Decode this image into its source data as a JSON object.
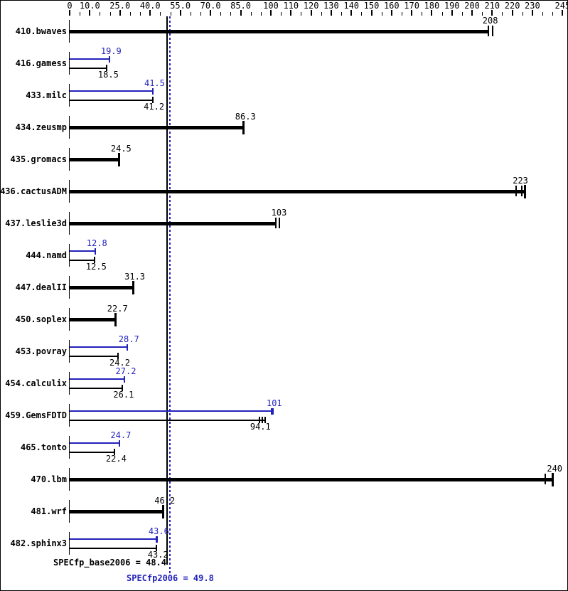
{
  "colors": {
    "base": "#000000",
    "peak": "#2222bb",
    "background": "#ffffff",
    "border": "#000000"
  },
  "chart_data": {
    "type": "bar",
    "orientation": "horizontal",
    "title": "",
    "xlabel": "",
    "ylabel": "",
    "axis": {
      "min": 0,
      "max": 245,
      "tick_step": 5,
      "grid": false,
      "major_ticks": [
        {
          "value": 0,
          "label": "0"
        },
        {
          "value": 10,
          "label": "10.0"
        },
        {
          "value": 25,
          "label": "25.0"
        },
        {
          "value": 40,
          "label": "40.0"
        },
        {
          "value": 55,
          "label": "55.0"
        },
        {
          "value": 70,
          "label": "70.0"
        },
        {
          "value": 85,
          "label": "85.0"
        },
        {
          "value": 100,
          "label": "100"
        },
        {
          "value": 110,
          "label": "110"
        },
        {
          "value": 120,
          "label": "120"
        },
        {
          "value": 130,
          "label": "130"
        },
        {
          "value": 140,
          "label": "140"
        },
        {
          "value": 150,
          "label": "150"
        },
        {
          "value": 160,
          "label": "160"
        },
        {
          "value": 170,
          "label": "170"
        },
        {
          "value": 180,
          "label": "180"
        },
        {
          "value": 190,
          "label": "190"
        },
        {
          "value": 200,
          "label": "200"
        },
        {
          "value": 210,
          "label": "210"
        },
        {
          "value": 220,
          "label": "220"
        },
        {
          "value": 230,
          "label": "230"
        },
        {
          "value": 245,
          "label": "245"
        }
      ]
    },
    "mean_lines": [
      {
        "name": "base-mean-line",
        "value": 48.4,
        "style": "solid",
        "color": "#000000"
      },
      {
        "name": "peak-mean-line",
        "value": 49.8,
        "style": "dotted",
        "color": "#2222bb"
      }
    ],
    "benchmarks": [
      {
        "name": "410.bwaves",
        "peak": null,
        "base": {
          "value": 208,
          "label": "208",
          "bar_to": 208.5,
          "cap": false,
          "run_ticks": [
            208,
            210.2
          ]
        }
      },
      {
        "name": "416.gamess",
        "peak": {
          "value": 19.9,
          "label": "19.9"
        },
        "base": {
          "value": 18.5,
          "label": "18.5"
        }
      },
      {
        "name": "433.milc",
        "peak": {
          "value": 41.5,
          "label": "41.5"
        },
        "base": {
          "value": 41.2,
          "label": "41.2"
        }
      },
      {
        "name": "434.zeusmp",
        "peak": null,
        "base": {
          "value": 86.3,
          "label": "86.3"
        }
      },
      {
        "name": "435.gromacs",
        "peak": null,
        "base": {
          "value": 24.5,
          "label": "24.5"
        }
      },
      {
        "name": "436.cactusADM",
        "peak": null,
        "base": {
          "value": 223,
          "label": "223",
          "bar_to": 226,
          "run_ticks": [
            222,
            224.8
          ]
        }
      },
      {
        "name": "437.leslie3d",
        "peak": null,
        "base": {
          "value": 103,
          "label": "103",
          "cap": false,
          "run_ticks": [
            102.4,
            104.2
          ]
        }
      },
      {
        "name": "444.namd",
        "peak": {
          "value": 12.8,
          "label": "12.8"
        },
        "base": {
          "value": 12.5,
          "label": "12.5"
        }
      },
      {
        "name": "447.dealII",
        "peak": null,
        "base": {
          "value": 31.3,
          "label": "31.3"
        }
      },
      {
        "name": "450.soplex",
        "peak": null,
        "base": {
          "value": 22.7,
          "label": "22.7"
        }
      },
      {
        "name": "453.povray",
        "peak": {
          "value": 28.7,
          "label": "28.7"
        },
        "base": {
          "value": 24.2,
          "label": "24.2"
        }
      },
      {
        "name": "454.calculix",
        "peak": {
          "value": 27.2,
          "label": "27.2"
        },
        "base": {
          "value": 26.1,
          "label": "26.1"
        }
      },
      {
        "name": "459.GemsFDTD",
        "peak": {
          "value": 101,
          "label": "101",
          "run_ticks": [
            100.2
          ]
        },
        "base": {
          "value": 94.1,
          "label": "94.1",
          "bar_to": 97.2,
          "run_ticks": [
            94.3,
            95.6
          ]
        }
      },
      {
        "name": "465.tonto",
        "peak": {
          "value": 24.7,
          "label": "24.7"
        },
        "base": {
          "value": 22.4,
          "label": "22.4"
        }
      },
      {
        "name": "470.lbm",
        "peak": null,
        "base": {
          "value": 240,
          "label": "240",
          "run_ticks": [
            236.3
          ]
        }
      },
      {
        "name": "481.wrf",
        "peak": null,
        "base": {
          "value": 46.2,
          "label": "46.2"
        }
      },
      {
        "name": "482.sphinx3",
        "peak": {
          "value": 43.6,
          "label": "43.6",
          "run_ticks": [
            43.0
          ]
        },
        "base": {
          "value": 43.2,
          "label": "43.2"
        }
      }
    ],
    "summary": {
      "base": {
        "text": "SPECfp_base2006 = 48.4",
        "value": 48.4
      },
      "peak": {
        "text": "SPECfp2006 = 49.8",
        "value": 49.8
      }
    }
  }
}
